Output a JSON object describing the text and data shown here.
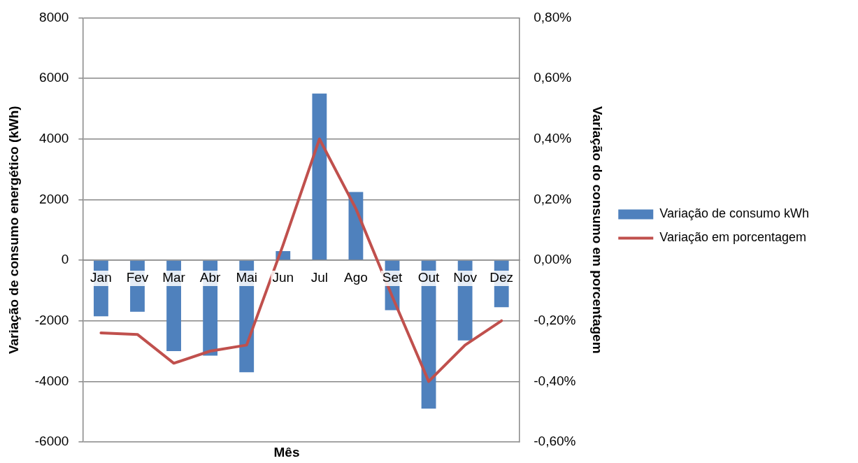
{
  "chart_data": {
    "type": "bar",
    "xlabel": "Mês",
    "ylabel": "Variação de consumo energético (kWh)",
    "y2label": "Variação do consumo em porcentagem",
    "categories": [
      "Jan",
      "Fev",
      "Mar",
      "Abr",
      "Mai",
      "Jun",
      "Jul",
      "Ago",
      "Set",
      "Out",
      "Nov",
      "Dez"
    ],
    "series": [
      {
        "name": "Variação de consumo kWh",
        "color": "#4f81bd",
        "values": [
          -1850,
          -1700,
          -3000,
          -3150,
          -3700,
          300,
          5500,
          2250,
          -1650,
          -4900,
          -2650,
          -1550
        ]
      },
      {
        "name": "Variação em porcentagem",
        "type": "line",
        "axis": "y2",
        "color": "#c0504d",
        "values": [
          -0.24,
          -0.245,
          -0.34,
          -0.3,
          -0.28,
          0.05,
          0.4,
          0.17,
          -0.12,
          -0.4,
          -0.28,
          -0.2
        ]
      }
    ],
    "ylim": [
      -6000,
      8000
    ],
    "yticks": [
      -6000,
      -4000,
      -2000,
      0,
      2000,
      4000,
      6000,
      8000
    ],
    "y2lim": [
      -0.6,
      0.8
    ],
    "y2ticks": [
      {
        "value": -0.6,
        "label": "-0,60%"
      },
      {
        "value": -0.4,
        "label": "-0,40%"
      },
      {
        "value": -0.2,
        "label": "-0,20%"
      },
      {
        "value": 0,
        "label": "0,00%"
      },
      {
        "value": 0.2,
        "label": "0,20%"
      },
      {
        "value": 0.4,
        "label": "0,40%"
      },
      {
        "value": 0.6,
        "label": "0,60%"
      },
      {
        "value": 0.8,
        "label": "0,80%"
      }
    ],
    "grid": "y",
    "legend": "right",
    "marker": "none",
    "line_style": "solid"
  }
}
